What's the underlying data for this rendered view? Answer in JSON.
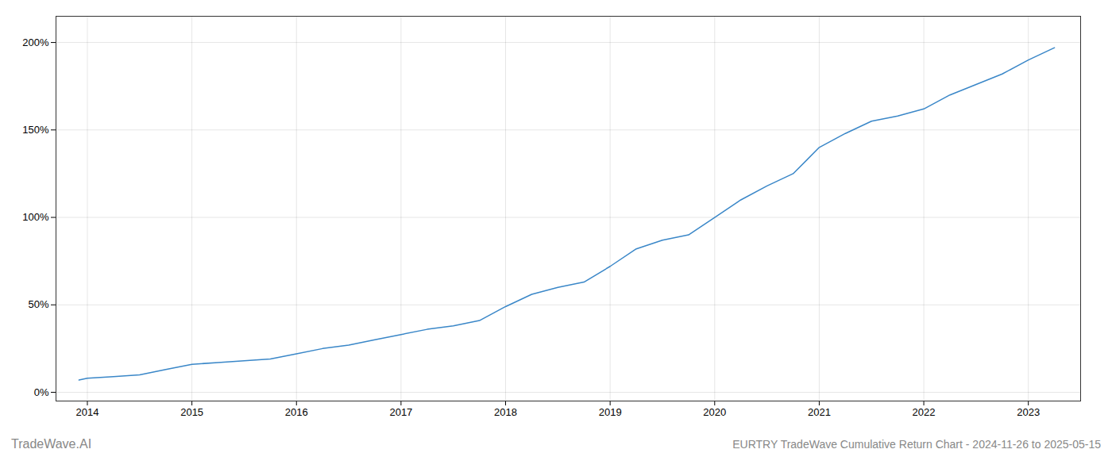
{
  "chart_data": {
    "type": "line",
    "title": "EURTRY TradeWave Cumulative Return Chart - 2024-11-26 to 2025-05-15",
    "annotations": [
      "TradeWave.AI"
    ],
    "x": [
      2013.92,
      2014.0,
      2014.25,
      2014.5,
      2014.75,
      2015.0,
      2015.25,
      2015.5,
      2015.75,
      2016.0,
      2016.25,
      2016.5,
      2016.75,
      2017.0,
      2017.25,
      2017.5,
      2017.75,
      2018.0,
      2018.25,
      2018.5,
      2018.75,
      2019.0,
      2019.25,
      2019.5,
      2019.75,
      2020.0,
      2020.25,
      2020.5,
      2020.75,
      2021.0,
      2021.25,
      2021.5,
      2021.75,
      2022.0,
      2022.25,
      2022.5,
      2022.75,
      2023.0,
      2023.25
    ],
    "values": [
      7,
      8,
      9,
      10,
      13,
      16,
      17,
      18,
      19,
      22,
      25,
      27,
      30,
      33,
      36,
      38,
      41,
      49,
      56,
      60,
      63,
      72,
      82,
      87,
      90,
      100,
      110,
      118,
      125,
      140,
      148,
      155,
      158,
      162,
      170,
      176,
      182,
      190,
      197
    ],
    "color": "#3a87c8",
    "xlim": [
      2013.7,
      2023.5
    ],
    "ylim": [
      -5,
      215
    ],
    "xticks": [
      2014,
      2015,
      2016,
      2017,
      2018,
      2019,
      2020,
      2021,
      2022,
      2023
    ],
    "yticks": [
      {
        "value": 0,
        "label": "0%"
      },
      {
        "value": 50,
        "label": "50%"
      },
      {
        "value": 100,
        "label": "100%"
      },
      {
        "value": 150,
        "label": "150%"
      },
      {
        "value": 200,
        "label": "200%"
      }
    ],
    "grid": true
  }
}
